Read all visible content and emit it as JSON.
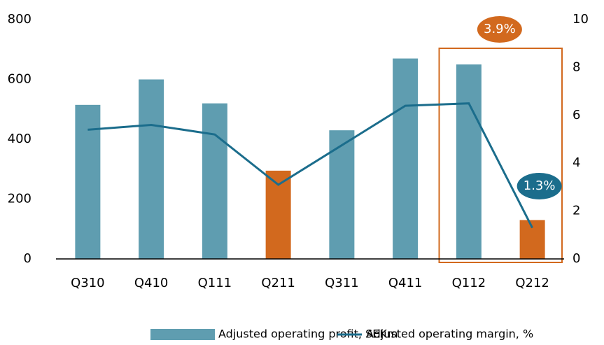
{
  "chart_data": {
    "type": "bar_line",
    "categories": [
      "Q310",
      "Q410",
      "Q111",
      "Q211",
      "Q311",
      "Q411",
      "Q112",
      "Q212"
    ],
    "series": [
      {
        "name": "Adjusted operating profit, SEKm",
        "type": "bar",
        "color": "#5f9db0",
        "colors": [
          "#5f9db0",
          "#5f9db0",
          "#5f9db0",
          "#d2691e",
          "#5f9db0",
          "#5f9db0",
          "#5f9db0",
          "#d2691e"
        ],
        "values": [
          515,
          600,
          520,
          295,
          430,
          670,
          650,
          130
        ]
      },
      {
        "name": "Adjusted operating margin, %",
        "type": "line",
        "axis": "y2",
        "color": "#1b6d8c",
        "values": [
          5.4,
          5.6,
          5.2,
          3.1,
          4.75,
          6.4,
          6.5,
          1.3
        ]
      }
    ],
    "ylim": [
      0,
      800
    ],
    "yticks": [
      0,
      200,
      400,
      600,
      800
    ],
    "y2lim": [
      0,
      10
    ],
    "y2ticks": [
      0,
      2,
      4,
      6,
      8,
      10
    ],
    "annotations": [
      {
        "text": "3.9%",
        "color": "#d2691e"
      },
      {
        "text": "1.3%",
        "color": "#1b6d8c"
      }
    ],
    "legend": "bottom"
  }
}
